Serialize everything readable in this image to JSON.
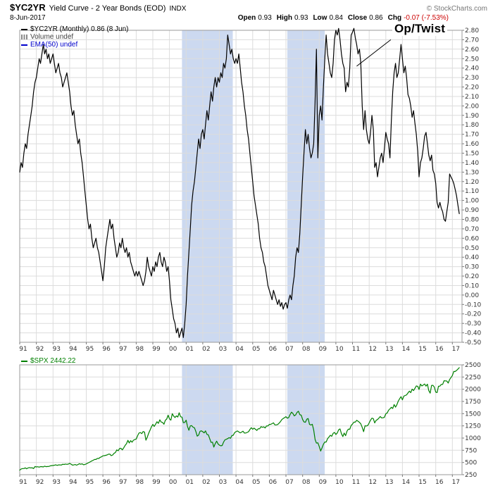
{
  "header": {
    "symbol": "$YC2YR",
    "title": "Yield Curve - 2 Year Bonds (EOD)",
    "exchange": "INDX",
    "copyright": "© StockCharts.com",
    "date": "8-Jun-2017",
    "quote": {
      "open_label": "Open",
      "open": "0.93",
      "high_label": "High",
      "high": "0.93",
      "low_label": "Low",
      "low": "0.84",
      "close_label": "Close",
      "close": "0.86",
      "chg_label": "Chg",
      "chg": "-0.07 (-7.53%)"
    },
    "colors": {
      "chg": "#cc0000"
    }
  },
  "main_chart": {
    "legend": [
      {
        "label": "$YC2YR (Monthly) 0.86 (8 Jun)",
        "color": "#000000",
        "swatch": "line"
      },
      {
        "label": "Volume undef",
        "color": "#444444",
        "swatch": "bars"
      },
      {
        "label": "EMA(50) undef",
        "color": "#0000cc",
        "swatch": "line"
      }
    ]
  },
  "lower_chart": {
    "legend": [
      {
        "label": "$SPX 2442.22",
        "color": "#008000",
        "swatch": "line"
      }
    ]
  },
  "chart_data": [
    {
      "type": "line",
      "id": "yc2yr",
      "title": "$YC2YR (Monthly) 0.86 (8 Jun)",
      "xlabel": "",
      "ylabel": "",
      "color": "#000000",
      "line_width": 1.2,
      "band_color": "#ccd9f0",
      "grid_color": "#dcdcdc",
      "legend_position": "top-left",
      "grid": true,
      "x_start_year": 1991,
      "x_interval_months": 1,
      "x_range": [
        1991,
        2017.58
      ],
      "ylim": [
        -0.5,
        2.8
      ],
      "y_tick_step": 0.1,
      "x_tick_labels": [
        "91",
        "92",
        "93",
        "94",
        "95",
        "96",
        "97",
        "98",
        "99",
        "00",
        "01",
        "02",
        "03",
        "04",
        "05",
        "06",
        "07",
        "08",
        "09",
        "10",
        "11",
        "12",
        "13",
        "14",
        "15",
        "16",
        "17"
      ],
      "shaded_bands": [
        {
          "from": 2000.75,
          "to": 2003.8
        },
        {
          "from": 2007.08,
          "to": 2009.33
        }
      ],
      "annotation": {
        "text": "Op/Twist",
        "line": {
          "from_x": 2013.3,
          "from_y": 2.7,
          "to_x": 2011.25,
          "to_y": 2.42
        }
      },
      "values": [
        1.3,
        1.4,
        1.35,
        1.5,
        1.6,
        1.55,
        1.7,
        1.8,
        1.9,
        2.0,
        2.15,
        2.25,
        2.3,
        2.4,
        2.5,
        2.45,
        2.55,
        2.65,
        2.55,
        2.6,
        2.5,
        2.55,
        2.45,
        2.5,
        2.55,
        2.45,
        2.35,
        2.4,
        2.45,
        2.35,
        2.3,
        2.2,
        2.25,
        2.3,
        2.35,
        2.25,
        2.15,
        2.0,
        1.9,
        1.95,
        1.8,
        1.7,
        1.6,
        1.65,
        1.5,
        1.4,
        1.25,
        1.1,
        0.95,
        0.8,
        0.7,
        0.75,
        0.6,
        0.5,
        0.55,
        0.6,
        0.5,
        0.45,
        0.35,
        0.25,
        0.15,
        0.3,
        0.5,
        0.6,
        0.7,
        0.8,
        0.7,
        0.75,
        0.6,
        0.5,
        0.4,
        0.45,
        0.55,
        0.5,
        0.6,
        0.5,
        0.45,
        0.5,
        0.4,
        0.45,
        0.35,
        0.3,
        0.25,
        0.2,
        0.25,
        0.2,
        0.25,
        0.2,
        0.15,
        0.1,
        0.15,
        0.25,
        0.4,
        0.3,
        0.25,
        0.2,
        0.3,
        0.25,
        0.35,
        0.3,
        0.4,
        0.45,
        0.35,
        0.3,
        0.4,
        0.35,
        0.25,
        0.3,
        0.15,
        -0.05,
        -0.15,
        -0.25,
        -0.3,
        -0.4,
        -0.35,
        -0.45,
        -0.4,
        -0.35,
        -0.45,
        -0.3,
        -0.1,
        0.2,
        0.45,
        0.7,
        0.95,
        1.1,
        1.2,
        1.35,
        1.5,
        1.65,
        1.55,
        1.7,
        1.75,
        1.65,
        1.8,
        1.95,
        1.85,
        2.0,
        2.15,
        2.05,
        2.2,
        2.3,
        2.2,
        2.3,
        2.25,
        2.35,
        2.3,
        2.45,
        2.4,
        2.5,
        2.75,
        2.65,
        2.55,
        2.6,
        2.5,
        2.45,
        2.5,
        2.45,
        2.55,
        2.4,
        2.25,
        2.15,
        2.0,
        1.9,
        1.75,
        1.65,
        1.5,
        1.35,
        1.2,
        1.05,
        0.95,
        0.85,
        0.75,
        0.6,
        0.5,
        0.45,
        0.35,
        0.3,
        0.2,
        0.1,
        0.05,
        0.0,
        -0.05,
        0.05,
        0.0,
        -0.05,
        -0.1,
        -0.05,
        -0.12,
        -0.08,
        -0.15,
        -0.1,
        -0.08,
        -0.14,
        -0.05,
        0.0,
        -0.05,
        0.1,
        0.2,
        0.4,
        0.5,
        0.45,
        0.65,
        0.95,
        1.25,
        1.5,
        1.75,
        1.6,
        1.7,
        1.55,
        1.45,
        1.5,
        1.6,
        2.05,
        2.6,
        1.45,
        1.9,
        2.0,
        1.85,
        2.2,
        2.5,
        2.75,
        2.55,
        2.45,
        2.35,
        2.3,
        2.45,
        2.7,
        2.8,
        2.75,
        2.82,
        2.7,
        2.55,
        2.45,
        2.4,
        2.15,
        2.25,
        2.2,
        2.4,
        2.75,
        2.78,
        2.82,
        2.72,
        2.65,
        2.55,
        2.6,
        2.45,
        2.0,
        1.75,
        1.95,
        1.75,
        1.65,
        1.6,
        1.72,
        1.9,
        1.75,
        1.35,
        1.4,
        1.25,
        1.35,
        1.45,
        1.5,
        1.4,
        1.55,
        1.72,
        1.65,
        1.6,
        1.45,
        1.85,
        2.15,
        2.35,
        2.45,
        2.3,
        2.35,
        2.5,
        2.65,
        2.5,
        2.35,
        2.42,
        2.3,
        2.12,
        2.08,
        2.0,
        1.88,
        1.95,
        1.82,
        1.7,
        1.52,
        1.25,
        1.4,
        1.45,
        1.55,
        1.68,
        1.72,
        1.6,
        1.48,
        1.42,
        1.48,
        1.32,
        1.28,
        1.18,
        0.98,
        0.92,
        0.98,
        0.92,
        0.88,
        0.8,
        0.78,
        0.88,
        0.98,
        1.28,
        1.25,
        1.22,
        1.18,
        1.12,
        1.05,
        0.95,
        0.86
      ]
    },
    {
      "type": "line",
      "id": "spx",
      "title": "$SPX 2442.22",
      "xlabel": "",
      "ylabel": "",
      "color": "#008000",
      "line_width": 1.2,
      "band_color": "#ccd9f0",
      "grid_color": "#dcdcdc",
      "legend_position": "top-left",
      "grid": true,
      "x_start_year": 1991,
      "x_interval_months": 1,
      "x_range": [
        1991,
        2017.58
      ],
      "ylim": [
        250,
        2500
      ],
      "y_tick_step": 250,
      "x_tick_labels": [
        "91",
        "92",
        "93",
        "94",
        "95",
        "96",
        "97",
        "98",
        "99",
        "00",
        "01",
        "02",
        "03",
        "04",
        "05",
        "06",
        "07",
        "08",
        "09",
        "10",
        "11",
        "12",
        "13",
        "14",
        "15",
        "16",
        "17"
      ],
      "shaded_bands": [
        {
          "from": 2000.75,
          "to": 2003.8
        },
        {
          "from": 2007.08,
          "to": 2009.33
        }
      ],
      "values": [
        343,
        367,
        375,
        375,
        390,
        371,
        388,
        395,
        388,
        392,
        375,
        417,
        409,
        413,
        404,
        415,
        415,
        408,
        424,
        414,
        418,
        419,
        431,
        436,
        439,
        443,
        452,
        440,
        450,
        451,
        448,
        464,
        459,
        468,
        462,
        466,
        482,
        467,
        446,
        451,
        457,
        444,
        458,
        475,
        463,
        472,
        454,
        459,
        470,
        487,
        501,
        515,
        533,
        545,
        562,
        562,
        584,
        582,
        605,
        616,
        636,
        640,
        646,
        654,
        669,
        671,
        640,
        652,
        687,
        705,
        757,
        741,
        786,
        791,
        757,
        801,
        848,
        885,
        954,
        899,
        947,
        915,
        955,
        970,
        980,
        1049,
        1102,
        1112,
        1091,
        1134,
        1121,
        957,
        1017,
        1099,
        1164,
        1229,
        1280,
        1238,
        1286,
        1335,
        1302,
        1373,
        1329,
        1320,
        1283,
        1363,
        1389,
        1469,
        1394,
        1366,
        1499,
        1452,
        1421,
        1455,
        1431,
        1518,
        1437,
        1429,
        1315,
        1320,
        1366,
        1240,
        1160,
        1249,
        1256,
        1224,
        1211,
        1134,
        1041,
        1060,
        1139,
        1148,
        1130,
        1107,
        1147,
        1077,
        1067,
        990,
        911,
        916,
        815,
        886,
        936,
        880,
        856,
        841,
        848,
        917,
        964,
        975,
        990,
        1008,
        996,
        1051,
        1058,
        1112,
        1131,
        1145,
        1126,
        1107,
        1121,
        1141,
        1102,
        1104,
        1115,
        1130,
        1174,
        1212,
        1181,
        1204,
        1181,
        1157,
        1192,
        1191,
        1234,
        1220,
        1229,
        1207,
        1249,
        1248,
        1280,
        1281,
        1295,
        1311,
        1270,
        1270,
        1277,
        1304,
        1336,
        1378,
        1401,
        1418,
        1438,
        1407,
        1421,
        1482,
        1531,
        1503,
        1455,
        1474,
        1527,
        1549,
        1481,
        1468,
        1379,
        1331,
        1323,
        1386,
        1400,
        1280,
        1267,
        1283,
        1166,
        969,
        896,
        903,
        826,
        735,
        798,
        873,
        919,
        919,
        987,
        1021,
        1057,
        1036,
        1096,
        1115,
        1074,
        1104,
        1169,
        1187,
        1089,
        1031,
        1102,
        1049,
        1141,
        1183,
        1181,
        1258,
        1286,
        1327,
        1326,
        1364,
        1345,
        1321,
        1292,
        1219,
        1131,
        1253,
        1247,
        1258,
        1312,
        1366,
        1408,
        1398,
        1310,
        1362,
        1379,
        1407,
        1441,
        1412,
        1416,
        1426,
        1498,
        1515,
        1569,
        1598,
        1631,
        1606,
        1686,
        1633,
        1682,
        1757,
        1806,
        1848,
        1783,
        1859,
        1872,
        1884,
        1924,
        1960,
        1931,
        2003,
        1972,
        2018,
        2068,
        2059,
        1995,
        2105,
        2068,
        2086,
        2107,
        2063,
        2104,
        1972,
        1920,
        2079,
        2080,
        2044,
        1940,
        1932,
        2060,
        2065,
        2097,
        2099,
        2174,
        2171,
        2168,
        2126,
        2199,
        2239,
        2279,
        2364,
        2363,
        2384,
        2412,
        2442
      ]
    }
  ]
}
